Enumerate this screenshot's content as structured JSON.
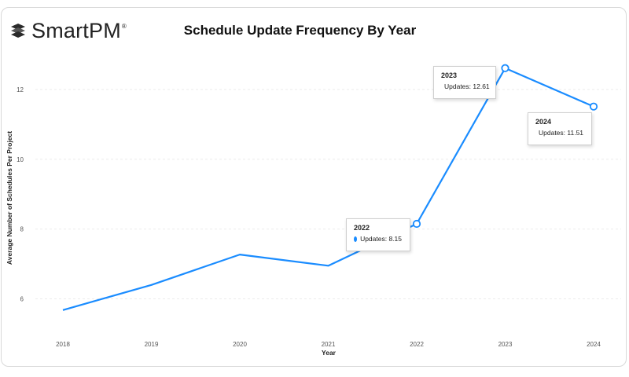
{
  "brand": {
    "name": "SmartPM",
    "registered_mark": "®"
  },
  "colors": {
    "line": "#1a8cff",
    "grid": "#ececec",
    "text": "#222222"
  },
  "chart_data": {
    "type": "line",
    "title": "Schedule Update Frequency By Year",
    "xlabel": "Year",
    "ylabel": "Average Number of Schedules Per Project",
    "categories": [
      "2018",
      "2019",
      "2020",
      "2021",
      "2022",
      "2023",
      "2024"
    ],
    "series": [
      {
        "name": "Updates",
        "values": [
          5.68,
          6.4,
          7.27,
          6.95,
          8.15,
          12.61,
          11.51
        ]
      }
    ],
    "yticks": [
      6,
      8,
      10,
      12
    ],
    "ylim": [
      5.0,
      13.1
    ],
    "grid": true,
    "legend": "none",
    "tooltips": [
      {
        "year": "2022",
        "label": "Updates: 8.15"
      },
      {
        "year": "2023",
        "label": "Updates: 12.61"
      },
      {
        "year": "2024",
        "label": "Updates: 11.51"
      }
    ]
  }
}
